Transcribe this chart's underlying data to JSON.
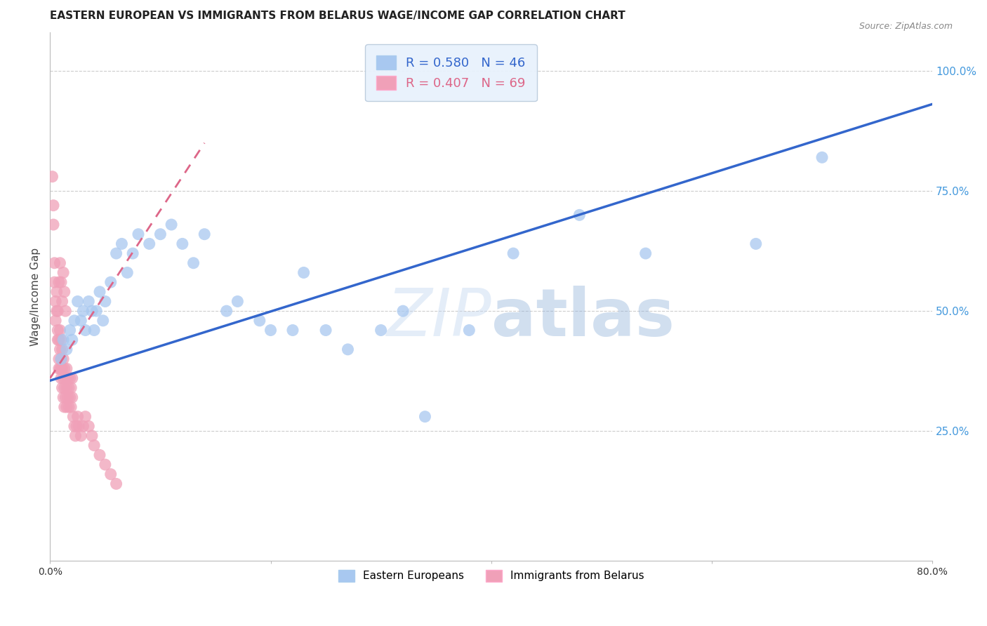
{
  "title": "EASTERN EUROPEAN VS IMMIGRANTS FROM BELARUS WAGE/INCOME GAP CORRELATION CHART",
  "source": "Source: ZipAtlas.com",
  "ylabel": "Wage/Income Gap",
  "watermark_zip": "ZIP",
  "watermark_atlas": "atlas",
  "xlim": [
    0.0,
    0.8
  ],
  "ylim": [
    -0.02,
    1.08
  ],
  "right_axis_color": "#4499DD",
  "background_color": "#FFFFFF",
  "grid_color": "#CCCCCC",
  "title_fontsize": 11,
  "legend_box_color": "#E8F2FC",
  "series_blue": {
    "label": "Eastern Europeans",
    "R": 0.58,
    "N": 46,
    "color": "#A8C8F0",
    "edge_color": "#7AAAE0",
    "line_color": "#3366CC",
    "line_intercept": 0.355,
    "line_slope": 0.72
  },
  "series_pink": {
    "label": "Immigrants from Belarus",
    "R": 0.407,
    "N": 69,
    "color": "#F0A0B8",
    "edge_color": "#E07090",
    "line_color": "#DD6688",
    "line_intercept": 0.36,
    "line_slope": 3.5
  },
  "blue_points_x": [
    0.01,
    0.012,
    0.015,
    0.018,
    0.02,
    0.022,
    0.025,
    0.028,
    0.03,
    0.032,
    0.035,
    0.038,
    0.04,
    0.042,
    0.045,
    0.048,
    0.05,
    0.055,
    0.06,
    0.065,
    0.07,
    0.075,
    0.08,
    0.09,
    0.1,
    0.11,
    0.12,
    0.13,
    0.14,
    0.16,
    0.17,
    0.19,
    0.2,
    0.22,
    0.23,
    0.25,
    0.27,
    0.3,
    0.32,
    0.34,
    0.38,
    0.42,
    0.48,
    0.54,
    0.64,
    0.7
  ],
  "blue_points_y": [
    0.4,
    0.44,
    0.42,
    0.46,
    0.44,
    0.48,
    0.52,
    0.48,
    0.5,
    0.46,
    0.52,
    0.5,
    0.46,
    0.5,
    0.54,
    0.48,
    0.52,
    0.56,
    0.62,
    0.64,
    0.58,
    0.62,
    0.66,
    0.64,
    0.66,
    0.68,
    0.64,
    0.6,
    0.66,
    0.5,
    0.52,
    0.48,
    0.46,
    0.46,
    0.58,
    0.46,
    0.42,
    0.46,
    0.5,
    0.28,
    0.46,
    0.62,
    0.7,
    0.62,
    0.64,
    0.82
  ],
  "pink_points_x": [
    0.002,
    0.003,
    0.003,
    0.004,
    0.004,
    0.005,
    0.005,
    0.006,
    0.006,
    0.007,
    0.007,
    0.007,
    0.008,
    0.008,
    0.008,
    0.009,
    0.009,
    0.009,
    0.01,
    0.01,
    0.01,
    0.01,
    0.011,
    0.011,
    0.011,
    0.012,
    0.012,
    0.012,
    0.013,
    0.013,
    0.013,
    0.014,
    0.014,
    0.015,
    0.015,
    0.015,
    0.016,
    0.016,
    0.017,
    0.017,
    0.018,
    0.018,
    0.019,
    0.019,
    0.02,
    0.02,
    0.021,
    0.022,
    0.023,
    0.024,
    0.025,
    0.026,
    0.028,
    0.03,
    0.032,
    0.035,
    0.038,
    0.04,
    0.045,
    0.05,
    0.055,
    0.06,
    0.008,
    0.009,
    0.01,
    0.011,
    0.012,
    0.013,
    0.014
  ],
  "pink_points_y": [
    0.78,
    0.72,
    0.68,
    0.6,
    0.56,
    0.52,
    0.48,
    0.54,
    0.5,
    0.46,
    0.5,
    0.44,
    0.44,
    0.4,
    0.38,
    0.46,
    0.42,
    0.38,
    0.44,
    0.4,
    0.36,
    0.38,
    0.42,
    0.38,
    0.34,
    0.4,
    0.36,
    0.32,
    0.38,
    0.34,
    0.3,
    0.36,
    0.32,
    0.38,
    0.34,
    0.3,
    0.36,
    0.32,
    0.34,
    0.3,
    0.36,
    0.32,
    0.34,
    0.3,
    0.36,
    0.32,
    0.28,
    0.26,
    0.24,
    0.26,
    0.28,
    0.26,
    0.24,
    0.26,
    0.28,
    0.26,
    0.24,
    0.22,
    0.2,
    0.18,
    0.16,
    0.14,
    0.56,
    0.6,
    0.56,
    0.52,
    0.58,
    0.54,
    0.5
  ]
}
